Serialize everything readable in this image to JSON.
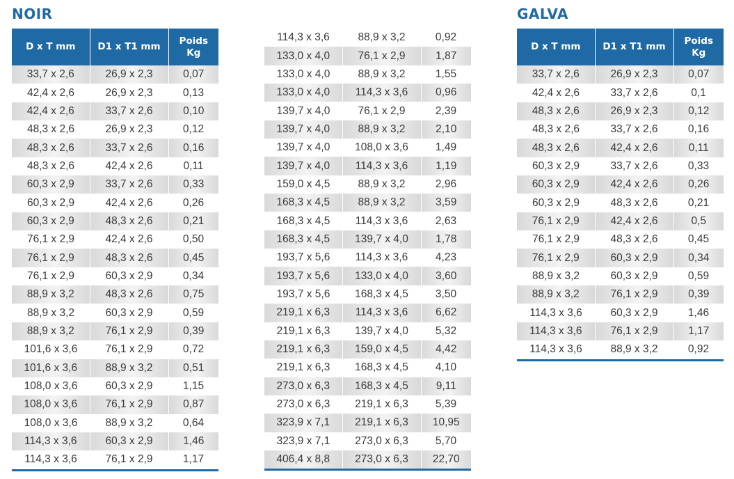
{
  "noir": {
    "title": "NOIR",
    "headers": [
      "D x T mm",
      "D1 x T1 mm",
      "Poids\nKg"
    ],
    "rows": [
      [
        "33,7 x 2,6",
        "26,9 x 2,3",
        "0,07"
      ],
      [
        "42,4 x 2,6",
        "26,9 x 2,3",
        "0,13"
      ],
      [
        "42,4 x 2,6",
        "33,7 x 2,6",
        "0,10"
      ],
      [
        "48,3 x 2,6",
        "26,9 x 2,3",
        "0,12"
      ],
      [
        "48,3 x 2,6",
        "33,7 x 2,6",
        "0,16"
      ],
      [
        "48,3 x 2,6",
        "42,4 x 2,6",
        "0,11"
      ],
      [
        "60,3 x 2,9",
        "33,7 x 2,6",
        "0,33"
      ],
      [
        "60,3 x 2,9",
        "42,4 x 2,6",
        "0,26"
      ],
      [
        "60,3 x 2,9",
        "48,3 x 2,6",
        "0,21"
      ],
      [
        "76,1 x 2,9",
        "42,4 x 2,6",
        "0,50"
      ],
      [
        "76,1 x 2,9",
        "48,3 x 2,6",
        "0,45"
      ],
      [
        "76,1 x 2,9",
        "60,3 x 2,9",
        "0,34"
      ],
      [
        "88,9 x 3,2",
        "48,3 x 2,6",
        "0,75"
      ],
      [
        "88,9 x 3,2",
        "60,3 x 2,9",
        "0,59"
      ],
      [
        "88,9 x 3,2",
        "76,1 x 2,9",
        "0,39"
      ],
      [
        "101,6 x 3,6",
        "76,1 x 2,9",
        "0,72"
      ],
      [
        "101,6 x 3,6",
        "88,9 x 3,2",
        "0,51"
      ],
      [
        "108,0 x 3,6",
        "60,3 x 2,9",
        "1,15"
      ],
      [
        "108,0 x 3,6",
        "76,1 x 2,9",
        "0,87"
      ],
      [
        "108,0 x 3,6",
        "88,9 x 3,2",
        "0,64"
      ],
      [
        "114,3 x 3,6",
        "60,3 x 2,9",
        "1,46"
      ],
      [
        "114,3 x 3,6",
        "76,1 x 2,9",
        "1,17"
      ]
    ]
  },
  "noir_cont": {
    "rows": [
      [
        "114,3 x 3,6",
        "88,9 x 3,2",
        "0,92"
      ],
      [
        "133,0 x 4,0",
        "76,1 x 2,9",
        "1,87"
      ],
      [
        "133,0 x 4,0",
        "88,9 x 3,2",
        "1,55"
      ],
      [
        "133,0 x 4,0",
        "114,3 x 3,6",
        "0,96"
      ],
      [
        "139,7 x 4,0",
        "76,1 x 2,9",
        "2,39"
      ],
      [
        "139,7 x 4,0",
        "88,9 x 3,2",
        "2,10"
      ],
      [
        "139,7 x 4,0",
        "108,0 x 3,6",
        "1,49"
      ],
      [
        "139,7 x 4,0",
        "114,3 x 3,6",
        "1,19"
      ],
      [
        "159,0 x 4,5",
        "88,9 x 3,2",
        "2,96"
      ],
      [
        "168,3 x 4,5",
        "88,9 x 3,2",
        "3,59"
      ],
      [
        "168,3 x 4,5",
        "114,3 x 3,6",
        "2,63"
      ],
      [
        "168,3 x 4,5",
        "139,7 x 4,0",
        "1,78"
      ],
      [
        "193,7 x 5,6",
        "114,3 x 3,6",
        "4,23"
      ],
      [
        "193,7 x 5,6",
        "133,0 x 4,0",
        "3,60"
      ],
      [
        "193,7 x 5,6",
        "168,3 x 4,5",
        "3,50"
      ],
      [
        "219,1 x 6,3",
        "114,3 x 3,6",
        "6,62"
      ],
      [
        "219,1 x 6,3",
        "139,7 x 4,0",
        "5,32"
      ],
      [
        "219,1 x 6,3",
        "159,0 x 4,5",
        "4,42"
      ],
      [
        "219,1 x 6,3",
        "168,3 x 4,5",
        "4,10"
      ],
      [
        "273,0 x 6,3",
        "168,3 x 4,5",
        "9,11"
      ],
      [
        "273,0 x 6,3",
        "219,1 x 6,3",
        "5,39"
      ],
      [
        "323,9 x 7,1",
        "219,1 x 6,3",
        "10,95"
      ],
      [
        "323,9 x 7,1",
        "273,0 x 6,3",
        "5,70"
      ],
      [
        "406,4 x 8,8",
        "273,0 x 6,3",
        "22,70"
      ]
    ]
  },
  "galva": {
    "title": "GALVA",
    "headers": [
      "D x T mm",
      "D1 x T1 mm",
      "Poids\nKg"
    ],
    "rows": [
      [
        "33,7 x 2,6",
        "26,9 x 2,3",
        "0,07"
      ],
      [
        "42,4 x 2,6",
        "33,7 x 2,6",
        "0,1"
      ],
      [
        "48,3 x 2,6",
        "26,9 x 2,3",
        "0,12"
      ],
      [
        "48,3 x 2,6",
        "33,7 x 2,6",
        "0,16"
      ],
      [
        "48,3 x 2,6",
        "42,4 x 2,6",
        "0,11"
      ],
      [
        "60,3 x 2,9",
        "33,7 x 2,6",
        "0,33"
      ],
      [
        "60,3 x 2,9",
        "42,4 x 2,6",
        "0,26"
      ],
      [
        "60,3 x 2,9",
        "48,3 x 2,6",
        "0,21"
      ],
      [
        "76,1 x 2,9",
        "42,4 x 2,6",
        "0,5"
      ],
      [
        "76,1 x 2,9",
        "48,3 x 2,6",
        "0,45"
      ],
      [
        "76,1 x 2,9",
        "60,3 x 2,9",
        "0,34"
      ],
      [
        "88,9 x 3,2",
        "60,3 x 2,9",
        "0,59"
      ],
      [
        "88,9 x 3,2",
        "76,1 x 2,9",
        "0,39"
      ],
      [
        "114,3 x 3,6",
        "60,3 x 2,9",
        "1,46"
      ],
      [
        "114,3 x 3,6",
        "76,1 x 2,9",
        "1,17"
      ],
      [
        "114,3 x 3,6",
        "88,9 x 3,2",
        "0,92"
      ]
    ]
  }
}
